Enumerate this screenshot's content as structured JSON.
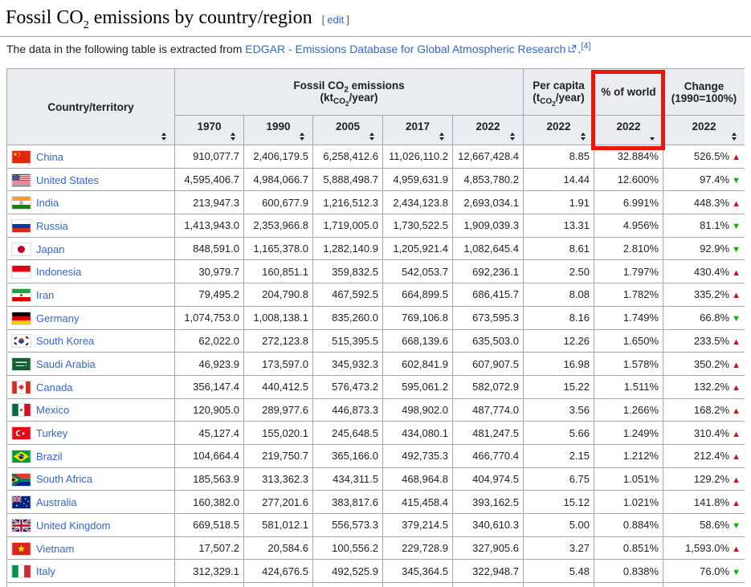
{
  "page": {
    "title": {
      "prefix": "Fossil CO",
      "sub": "2",
      "suffix": " emissions by country/region"
    },
    "edit": {
      "open": "[",
      "label": "edit",
      "close": "]"
    },
    "intro": {
      "text": "The data in the following table is extracted from ",
      "link": "EDGAR - Emissions Database for Global Atmospheric Research",
      "period": ".",
      "ref": "[4]"
    }
  },
  "colors": {
    "annotation_red": "#e8160c",
    "trend_up": "#d01111",
    "trend_down": "#00b800",
    "link_blue": "#3366cc",
    "header_bg": "#eaecf0",
    "table_border": "#a2a9b1"
  },
  "table": {
    "header": {
      "country": "Country/territory",
      "emissions": {
        "l1_prefix": "Fossil CO",
        "l1_sub": "2",
        "l1_suffix": " emissions",
        "l2_prefix": "(kt",
        "l2_sub": "CO",
        "l2_subsub": "2",
        "l2_suffix": "/year)"
      },
      "per_capita": {
        "l1": "Per capita",
        "l2_prefix": "(t",
        "l2_sub": "CO",
        "l2_subsub": "2",
        "l2_suffix": "/year)"
      },
      "pct_world": "% of world",
      "change": {
        "l1": "Change",
        "l2": "(1990=100%)"
      },
      "sub_years": [
        "1970",
        "1990",
        "2005",
        "2017",
        "2022",
        "2022",
        "2022",
        "2022"
      ]
    },
    "rows": [
      {
        "flag": "cn",
        "country": "China",
        "y1970": "910,077.7",
        "y1990": "2,406,179.5",
        "y2005": "6,258,412.6",
        "y2017": "11,026,110.2",
        "y2022": "12,667,428.4",
        "per_capita": "8.85",
        "pct_world": "32.884%",
        "change": "526.5%",
        "trend": "up"
      },
      {
        "flag": "us",
        "country": "United States",
        "y1970": "4,595,406.7",
        "y1990": "4,984,066.7",
        "y2005": "5,888,498.7",
        "y2017": "4,959,631.9",
        "y2022": "4,853,780.2",
        "per_capita": "14.44",
        "pct_world": "12.600%",
        "change": "97.4%",
        "trend": "down"
      },
      {
        "flag": "in",
        "country": "India",
        "y1970": "213,947.3",
        "y1990": "600,677.9",
        "y2005": "1,216,512.3",
        "y2017": "2,434,123.8",
        "y2022": "2,693,034.1",
        "per_capita": "1.91",
        "pct_world": "6.991%",
        "change": "448.3%",
        "trend": "up"
      },
      {
        "flag": "ru",
        "country": "Russia",
        "y1970": "1,413,943.0",
        "y1990": "2,353,966.8",
        "y2005": "1,719,005.0",
        "y2017": "1,730,522.5",
        "y2022": "1,909,039.3",
        "per_capita": "13.31",
        "pct_world": "4.956%",
        "change": "81.1%",
        "trend": "down"
      },
      {
        "flag": "jp",
        "country": "Japan",
        "y1970": "848,591.0",
        "y1990": "1,165,378.0",
        "y2005": "1,282,140.9",
        "y2017": "1,205,921.4",
        "y2022": "1,082,645.4",
        "per_capita": "8.61",
        "pct_world": "2.810%",
        "change": "92.9%",
        "trend": "down"
      },
      {
        "flag": "id",
        "country": "Indonesia",
        "y1970": "30,979.7",
        "y1990": "160,851.1",
        "y2005": "359,832.5",
        "y2017": "542,053.7",
        "y2022": "692,236.1",
        "per_capita": "2.50",
        "pct_world": "1.797%",
        "change": "430.4%",
        "trend": "up"
      },
      {
        "flag": "ir",
        "country": "Iran",
        "y1970": "79,495.2",
        "y1990": "204,790.8",
        "y2005": "467,592.5",
        "y2017": "664,899.5",
        "y2022": "686,415.7",
        "per_capita": "8.08",
        "pct_world": "1.782%",
        "change": "335.2%",
        "trend": "up"
      },
      {
        "flag": "de",
        "country": "Germany",
        "y1970": "1,074,753.0",
        "y1990": "1,008,138.1",
        "y2005": "835,260.0",
        "y2017": "769,106.8",
        "y2022": "673,595.3",
        "per_capita": "8.16",
        "pct_world": "1.749%",
        "change": "66.8%",
        "trend": "down"
      },
      {
        "flag": "kr",
        "country": "South Korea",
        "y1970": "62,022.0",
        "y1990": "272,123.8",
        "y2005": "515,395.5",
        "y2017": "668,139.6",
        "y2022": "635,503.0",
        "per_capita": "12.26",
        "pct_world": "1.650%",
        "change": "233.5%",
        "trend": "up"
      },
      {
        "flag": "sa",
        "country": "Saudi Arabia",
        "y1970": "46,923.9",
        "y1990": "173,597.0",
        "y2005": "345,932.3",
        "y2017": "602,841.9",
        "y2022": "607,907.5",
        "per_capita": "16.98",
        "pct_world": "1.578%",
        "change": "350.2%",
        "trend": "up"
      },
      {
        "flag": "ca",
        "country": "Canada",
        "y1970": "356,147.4",
        "y1990": "440,412.5",
        "y2005": "576,473.2",
        "y2017": "595,061.2",
        "y2022": "582,072.9",
        "per_capita": "15.22",
        "pct_world": "1.511%",
        "change": "132.2%",
        "trend": "up"
      },
      {
        "flag": "mx",
        "country": "Mexico",
        "y1970": "120,905.0",
        "y1990": "289,977.6",
        "y2005": "446,873.3",
        "y2017": "498,902.0",
        "y2022": "487,774.0",
        "per_capita": "3.56",
        "pct_world": "1.266%",
        "change": "168.2%",
        "trend": "up"
      },
      {
        "flag": "tr",
        "country": "Turkey",
        "y1970": "45,127.4",
        "y1990": "155,020.1",
        "y2005": "245,648.5",
        "y2017": "434,080.1",
        "y2022": "481,247.5",
        "per_capita": "5.66",
        "pct_world": "1.249%",
        "change": "310.4%",
        "trend": "up"
      },
      {
        "flag": "br",
        "country": "Brazil",
        "y1970": "104,664.4",
        "y1990": "219,750.7",
        "y2005": "365,166.0",
        "y2017": "492,735.3",
        "y2022": "466,770.4",
        "per_capita": "2.15",
        "pct_world": "1.212%",
        "change": "212.4%",
        "trend": "up"
      },
      {
        "flag": "za",
        "country": "South Africa",
        "y1970": "185,563.9",
        "y1990": "313,362.3",
        "y2005": "434,311.5",
        "y2017": "468,964.8",
        "y2022": "404,974.5",
        "per_capita": "6.75",
        "pct_world": "1.051%",
        "change": "129.2%",
        "trend": "up"
      },
      {
        "flag": "au",
        "country": "Australia",
        "y1970": "160,382.0",
        "y1990": "277,201.6",
        "y2005": "383,817.6",
        "y2017": "415,458.4",
        "y2022": "393,162.5",
        "per_capita": "15.12",
        "pct_world": "1.021%",
        "change": "141.8%",
        "trend": "up"
      },
      {
        "flag": "gb",
        "country": "United Kingdom",
        "y1970": "669,518.5",
        "y1990": "581,012.1",
        "y2005": "556,573.3",
        "y2017": "379,214.5",
        "y2022": "340,610.3",
        "per_capita": "5.00",
        "pct_world": "0.884%",
        "change": "58.6%",
        "trend": "down"
      },
      {
        "flag": "vn",
        "country": "Vietnam",
        "y1970": "17,507.2",
        "y1990": "20,584.6",
        "y2005": "100,556.2",
        "y2017": "229,728.9",
        "y2022": "327,905.6",
        "per_capita": "3.27",
        "pct_world": "0.851%",
        "change": "1,593.0%",
        "trend": "up"
      },
      {
        "flag": "it",
        "country": "Italy",
        "y1970": "312,329.1",
        "y1990": "424,676.5",
        "y2005": "492,525.9",
        "y2017": "345,364.5",
        "y2022": "322,948.7",
        "per_capita": "5.48",
        "pct_world": "0.838%",
        "change": "76.0%",
        "trend": "down"
      }
    ]
  }
}
